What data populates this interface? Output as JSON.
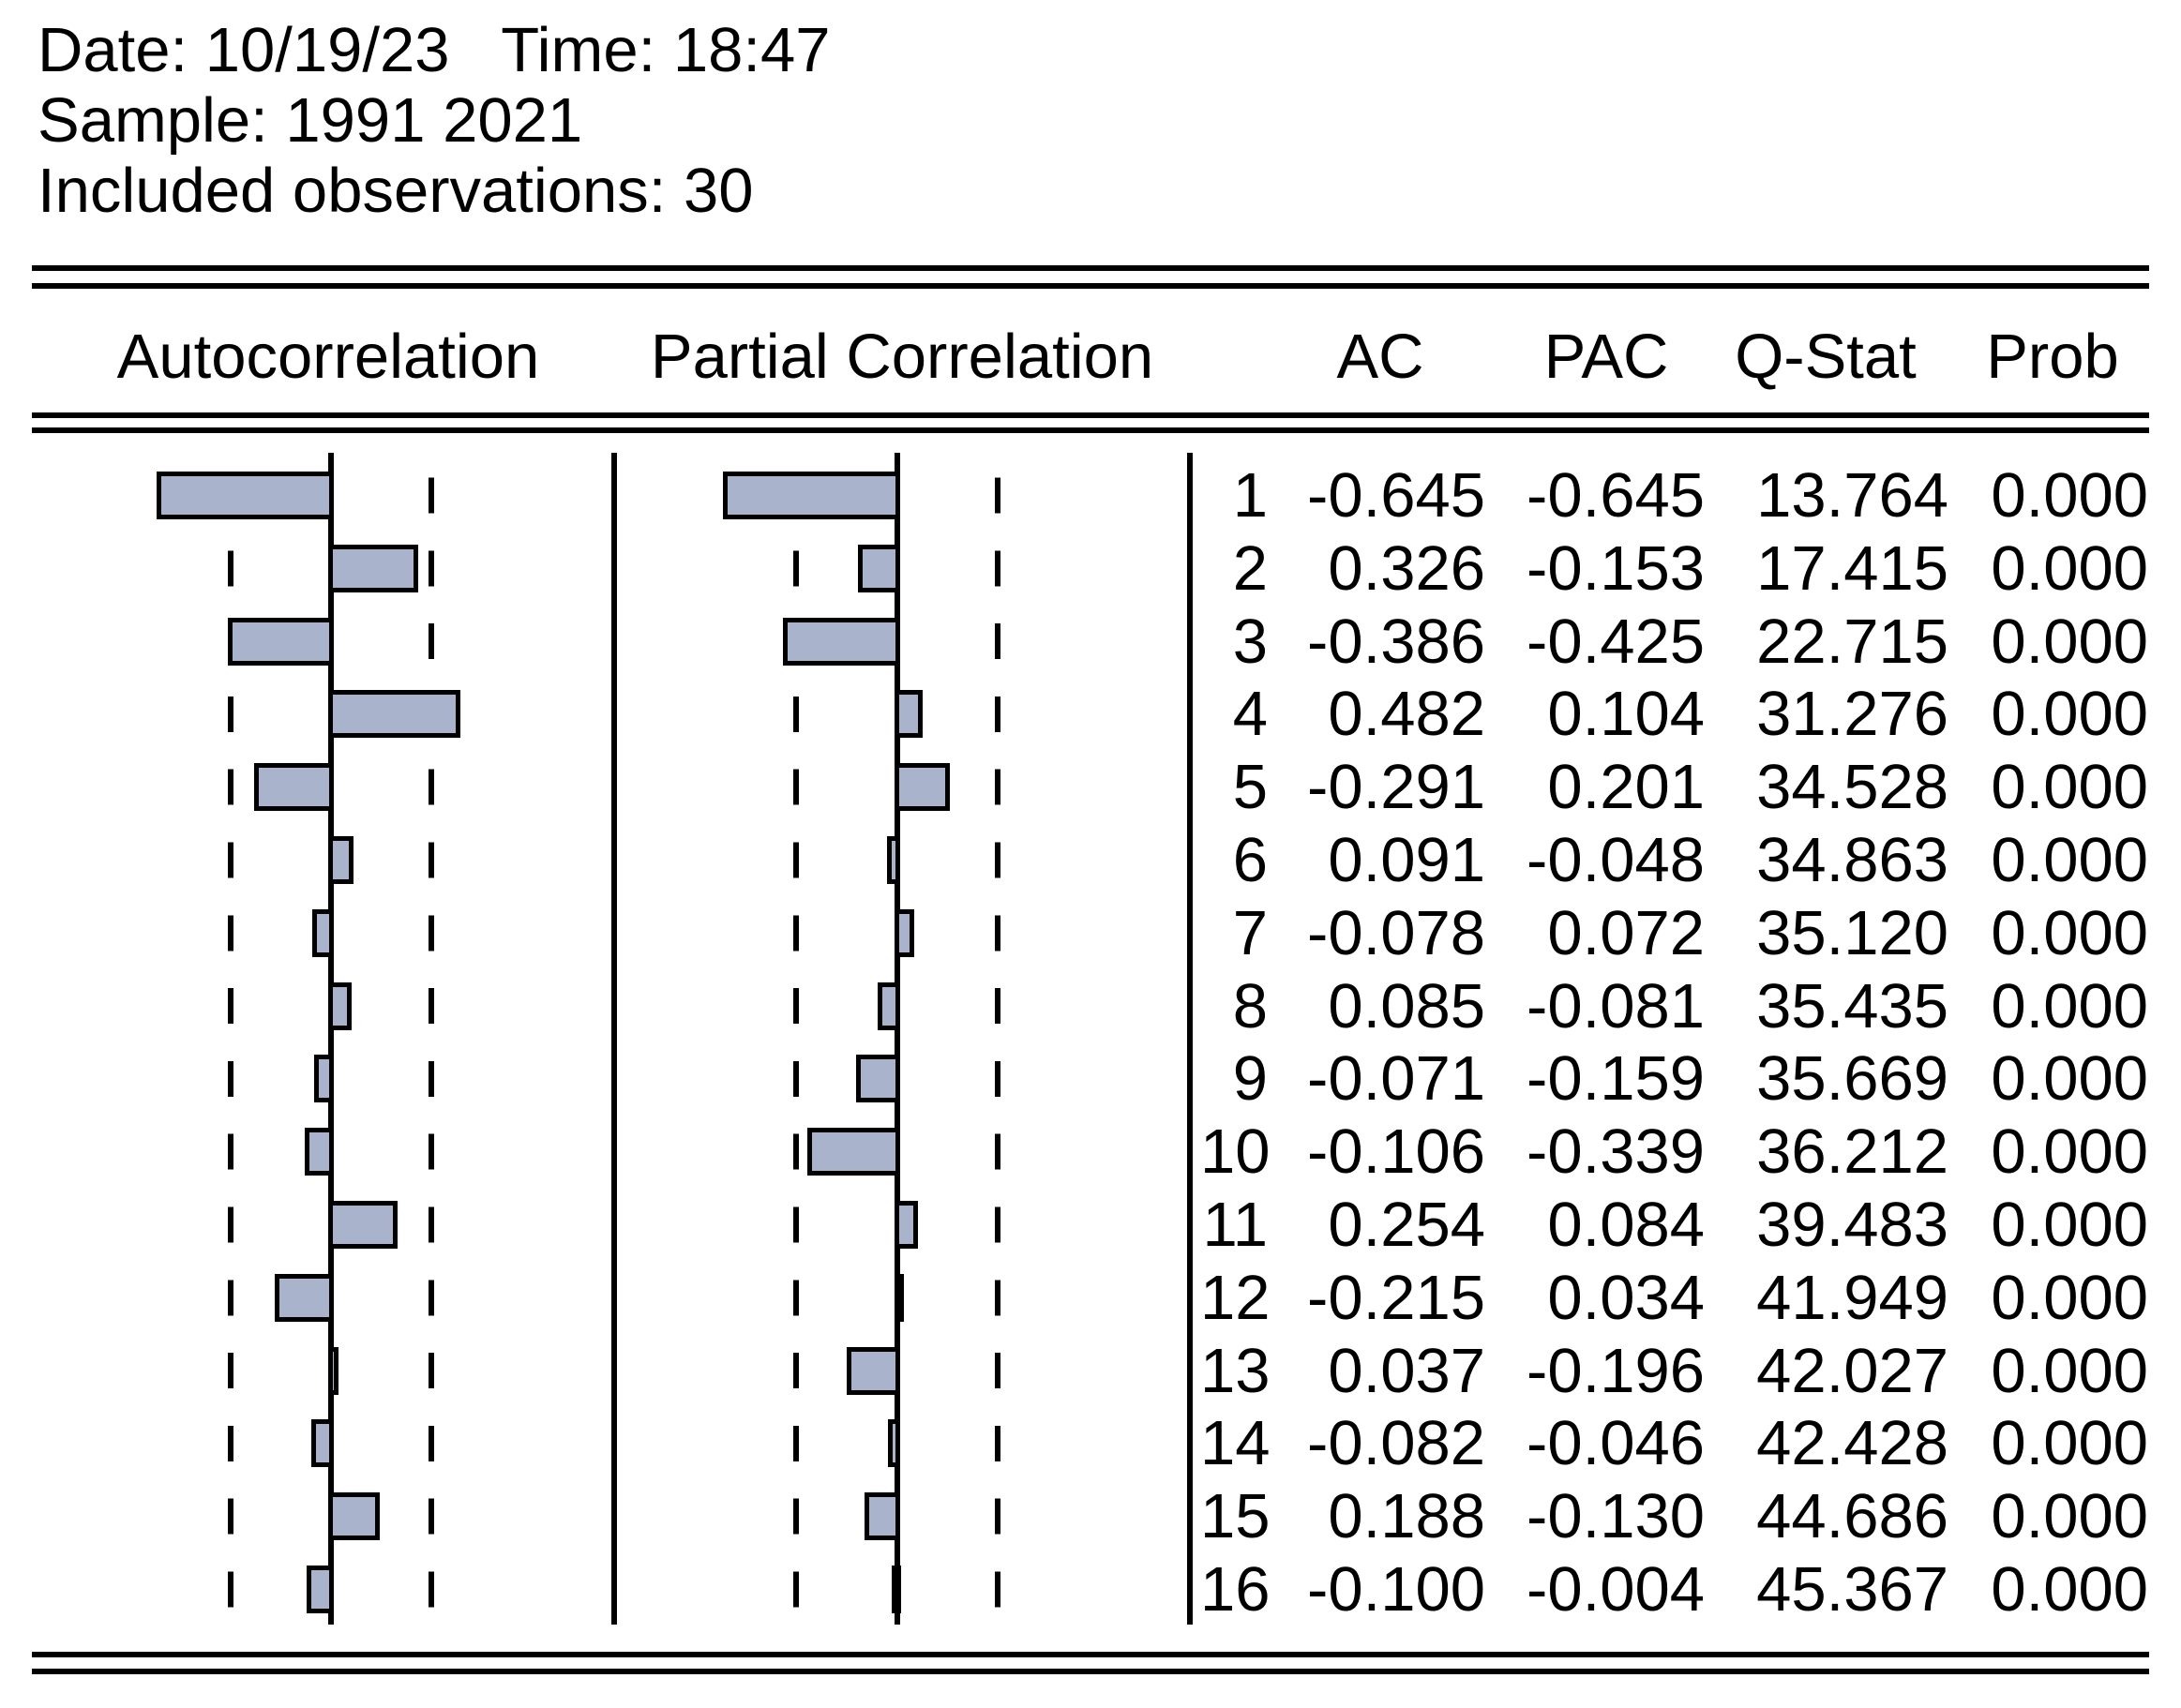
{
  "header": {
    "date_time_line": "Date: 10/19/23   Time: 18:47",
    "sample_line": "Sample: 1991 2021",
    "observations_line": "Included observations: 30"
  },
  "table": {
    "column_headers": {
      "autocorrelation": "Autocorrelation",
      "partial_correlation": "Partial Correlation",
      "ac": "AC",
      "pac": "PAC",
      "qstat": "Q-Stat",
      "prob": "Prob"
    }
  },
  "chart_data": {
    "type": "bar",
    "orientation": "horizontal",
    "title": "Correlogram",
    "panels": [
      {
        "title": "Autocorrelation",
        "series": "AC"
      },
      {
        "title": "Partial Correlation",
        "series": "PAC"
      }
    ],
    "lags": [
      1,
      2,
      3,
      4,
      5,
      6,
      7,
      8,
      9,
      10,
      11,
      12,
      13,
      14,
      15,
      16
    ],
    "series": [
      {
        "name": "AC",
        "values": [
          -0.645,
          0.326,
          -0.386,
          0.482,
          -0.291,
          0.091,
          -0.078,
          0.085,
          -0.071,
          -0.106,
          0.254,
          -0.215,
          0.037,
          -0.082,
          0.188,
          -0.1
        ]
      },
      {
        "name": "PAC",
        "values": [
          -0.645,
          -0.153,
          -0.425,
          0.104,
          0.201,
          -0.048,
          0.072,
          -0.081,
          -0.159,
          -0.339,
          0.084,
          0.034,
          -0.196,
          -0.046,
          -0.13,
          -0.004
        ]
      },
      {
        "name": "Q-Stat",
        "values": [
          13.764,
          17.415,
          22.715,
          31.276,
          34.528,
          34.863,
          35.12,
          35.435,
          35.669,
          36.212,
          39.483,
          41.949,
          42.027,
          42.428,
          44.686,
          45.367
        ]
      },
      {
        "name": "Prob",
        "values": [
          0.0,
          0.0,
          0.0,
          0.0,
          0.0,
          0.0,
          0.0,
          0.0,
          0.0,
          0.0,
          0.0,
          0.0,
          0.0,
          0.0,
          0.0,
          0.0
        ]
      }
    ],
    "confidence_band": [
      -0.365,
      0.365
    ],
    "axis_range": [
      -1,
      1
    ],
    "grid": false,
    "bar_color": "#a9b4cc",
    "line_color": "#000000",
    "value_decimals": 3
  }
}
